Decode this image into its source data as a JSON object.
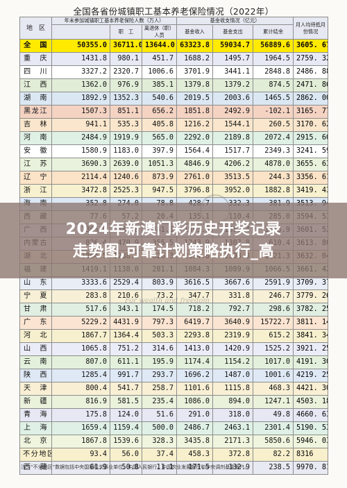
{
  "title": "全国各省份城镇职工基本养老保险情况（2022年）",
  "headers": {
    "region": "地　区",
    "participants": "年末参加城镇职工基本养老保险人数（万人）",
    "workers": "职　工",
    "retirees": "离退休（职）人员",
    "fund_group": "基金收支情况（亿元）",
    "income": "基金收入",
    "expense": "基金支出",
    "balance": "累计结余",
    "months": "月人均待抵月份情况"
  },
  "rows": [
    {
      "name": "全　国",
      "p": "50355.0",
      "w": "36711.0",
      "r": "13644.0",
      "i": "63323.8",
      "e": "59034.7",
      "b": "56889.6",
      "m": "3605. 67",
      "color": "#ffea00",
      "hl": true
    },
    {
      "name": "重　庆",
      "p": "1431.8",
      "w": "980.1",
      "r": "451.7",
      "i": "1688.2",
      "e": "1495.7",
      "b": "1964.5",
      "m": "2759. 32",
      "color": "#e7e9f4"
    },
    {
      "name": "四　川",
      "p": "3327.2",
      "w": "2320.7",
      "r": "1006.6",
      "i": "3701.9",
      "e": "3441.1",
      "b": "2848.8",
      "m": "2486. 88",
      "color": "#ffffff"
    },
    {
      "name": "江　西",
      "p": "1362.0",
      "w": "976.9",
      "r": "385.1",
      "i": "1379.8",
      "e": "1379.2",
      "b": "874.5",
      "m": "2471. 86",
      "color": "#e2edd8"
    },
    {
      "name": "湖　南",
      "p": "1892.9",
      "w": "1352.3",
      "r": "540.6",
      "i": "2019.5",
      "e": "2003.6",
      "b": "1465.5",
      "m": "2862. 00",
      "color": "#dbe7f3"
    },
    {
      "name": "黑龙江",
      "p": "1507.3",
      "w": "851.1",
      "r": "656.2",
      "i": "1851.8",
      "e": "2492.9",
      "b": "-102.1",
      "m": "3165. 77",
      "color": "#f4d3c3"
    },
    {
      "name": "吉　林",
      "p": "941.1",
      "w": "535.3",
      "r": "405.8",
      "i": "1216.2",
      "e": "1544.1",
      "b": "260.5",
      "m": "3170. 62",
      "color": "#f9e6cc"
    },
    {
      "name": "河　南",
      "p": "2484.9",
      "w": "1919.9",
      "r": "565.0",
      "i": "2292.0",
      "e": "2189.8",
      "b": "2072.4",
      "m": "2915. 60",
      "color": "#dff0e4"
    },
    {
      "name": "安　徽",
      "p": "1580.9",
      "w": "1183.0",
      "r": "397.9",
      "i": "1564.4",
      "e": "1517.7",
      "b": "2349.3",
      "m": "3241. 59",
      "color": "#ffffff"
    },
    {
      "name": "江　苏",
      "p": "3690.3",
      "w": "2639.0",
      "r": "1051.3",
      "i": "4846.9",
      "e": "4206.2",
      "b": "4878.0",
      "m": "3655. 63",
      "color": "#e9f2dc"
    },
    {
      "name": "辽　宁",
      "p": "2114.4",
      "w": "1240.6",
      "r": "873.9",
      "i": "2761.0",
      "e": "3513.5",
      "b": "244.3",
      "m": "3356. 61",
      "color": "#fbe3c7"
    },
    {
      "name": "浙　江",
      "p": "3472.8",
      "w": "2525.3",
      "r": "947.5",
      "i": "3796.8",
      "e": "3952.0",
      "b": "1882.8",
      "m": "3419. 43",
      "color": "#f7f1cf"
    },
    {
      "name": "海　南",
      "p": "352.8",
      "w": "274.0",
      "r": "78.8",
      "i": "428.7",
      "e": "332.3",
      "b": "381.9",
      "m": "3513. 94",
      "color": "#dbe7f4"
    },
    {
      "name": "西　藏",
      "p": "77.6",
      "w": "57.2",
      "r": "20.4",
      "i": "135.1",
      "e": "110.4",
      "b": "285.0",
      "m": "3594. 53",
      "color": "#f1f4ec"
    },
    {
      "name": "广　西",
      "p": "1365.0",
      "w": "883.8",
      "r": "481.3",
      "i": "1593.3",
      "e": "1552.4",
      "b": "1053.9",
      "m": "3601. 52",
      "color": "#eaecf7"
    },
    {
      "name": "内蒙古",
      "p": "826.4",
      "w": "470.9",
      "r": "355.5",
      "i": "1243.9",
      "e": "1307.8",
      "b": "610.4",
      "m": "3613. 80",
      "color": "#f4eaf2"
    },
    {
      "name": "湖　北",
      "p": "1864.5",
      "w": "1238.2",
      "r": "626.3",
      "i": "2154.8",
      "e": "2308.8",
      "b": "1121.3",
      "m": "3632. 04",
      "color": "#f9e8da"
    },
    {
      "name": "福　建",
      "p": "1419.1",
      "w": "1138.0",
      "r": "281.1",
      "i": "1084.3",
      "e": "1089.9",
      "b": "1066.5",
      "m": "3661. 42",
      "color": "#eef3e0"
    },
    {
      "name": "山　东",
      "p": "3333.6",
      "w": "2529.4",
      "r": "803.9",
      "i": "3616.5",
      "e": "3667.6",
      "b": "2591.9",
      "m": "3709. 37",
      "color": "#e8edf6"
    },
    {
      "name": "宁　夏",
      "p": "283.8",
      "w": "210.6",
      "r": "73.2",
      "i": "347.7",
      "e": "331.8",
      "b": "246.7",
      "m": "3779. 26",
      "color": "#f7f0d6"
    },
    {
      "name": "甘　肃",
      "p": "517.6",
      "w": "343.1",
      "r": "174.5",
      "i": "718.2",
      "e": "792.7",
      "b": "298.6",
      "m": "3782. 25",
      "color": "#e1efe2"
    },
    {
      "name": "广　东",
      "p": "5229.2",
      "w": "4431.9",
      "r": "797.3",
      "i": "6419.7",
      "e": "3640.9",
      "b": "15722.7",
      "m": "3811. 14",
      "color": "#fbe5d2"
    },
    {
      "name": "河　北",
      "p": "1867.7",
      "w": "1364.4",
      "r": "503.3",
      "i": "2293.8",
      "e": "2319.9",
      "b": "615.2",
      "m": "3841. 34",
      "color": "#f7f0cf"
    },
    {
      "name": "山　西",
      "p": "1065.8",
      "w": "751.2",
      "r": "314.6",
      "i": "1413.0",
      "e": "1420.9",
      "b": "1525.2",
      "m": "3921. 25",
      "color": "#eaecf7"
    },
    {
      "name": "云　南",
      "p": "807.0",
      "w": "611.1",
      "r": "195.9",
      "i": "1174.4",
      "e": "1154.2",
      "b": "1017.0",
      "m": "4191. 30",
      "color": "#e3f1dc"
    },
    {
      "name": "陕　西",
      "p": "1285.4",
      "w": "991.7",
      "r": "293.7",
      "i": "1696.2",
      "e": "1487.0",
      "b": "1001.6",
      "m": "4219. 25",
      "color": "#dfe9f6"
    },
    {
      "name": "天　津",
      "p": "800.4",
      "w": "541.7",
      "r": "258.7",
      "i": "1101.6",
      "e": "1115.8",
      "b": "468.3",
      "m": "4421. 30",
      "color": "#f8efd4"
    },
    {
      "name": "新　疆",
      "p": "816.9",
      "w": "581.5",
      "r": "235.4",
      "i": "1086.0",
      "e": "894.0",
      "b": "1247.1",
      "m": "4503. 18",
      "color": "#eaf2dc"
    },
    {
      "name": "青　海",
      "p": "175.8",
      "w": "124.0",
      "r": "51.6",
      "i": "291.0",
      "e": "318.0",
      "b": "49.8",
      "m": "4660. 63",
      "color": "#e6e9f4"
    },
    {
      "name": "上　海",
      "p": "1659.4",
      "w": "1159.4",
      "r": "500.0",
      "i": "2486.7",
      "e": "2463.1",
      "b": "2301.4",
      "m": "5190. 53",
      "color": "#dff1e6"
    },
    {
      "name": "北　京",
      "p": "1867.8",
      "w": "1539.6",
      "r": "328.3",
      "i": "3435.8",
      "e": "2171.3",
      "b": "5850.6",
      "m": "5946. 03",
      "color": "#eff5de"
    },
    {
      "name": "不分地区",
      "p": "93.4",
      "w": "56.0",
      "r": "37.4",
      "i": "458.3",
      "e": "372.8",
      "b": "82.2",
      "m": "8316",
      "color": "#f8f0cd"
    },
    {
      "name": "西　藏",
      "p": "61.9",
      "w": "50.8",
      "r": "11.1",
      "i": "171.5",
      "e": "132.9",
      "b": "238.5",
      "m": "9970. 81",
      "color": "#e7eaf2"
    }
  ],
  "footnote": "注：“不分地区”数据包括中央国家机关事业单位、中国人民银行、中国农业发展银行和中央调剂基金账户。",
  "banner": {
    "line1": "2024年新澳门彩历史开奖记录",
    "line2": "走势图,可靠计划策略执行_高"
  },
  "watermark": "For wealth and freedom"
}
